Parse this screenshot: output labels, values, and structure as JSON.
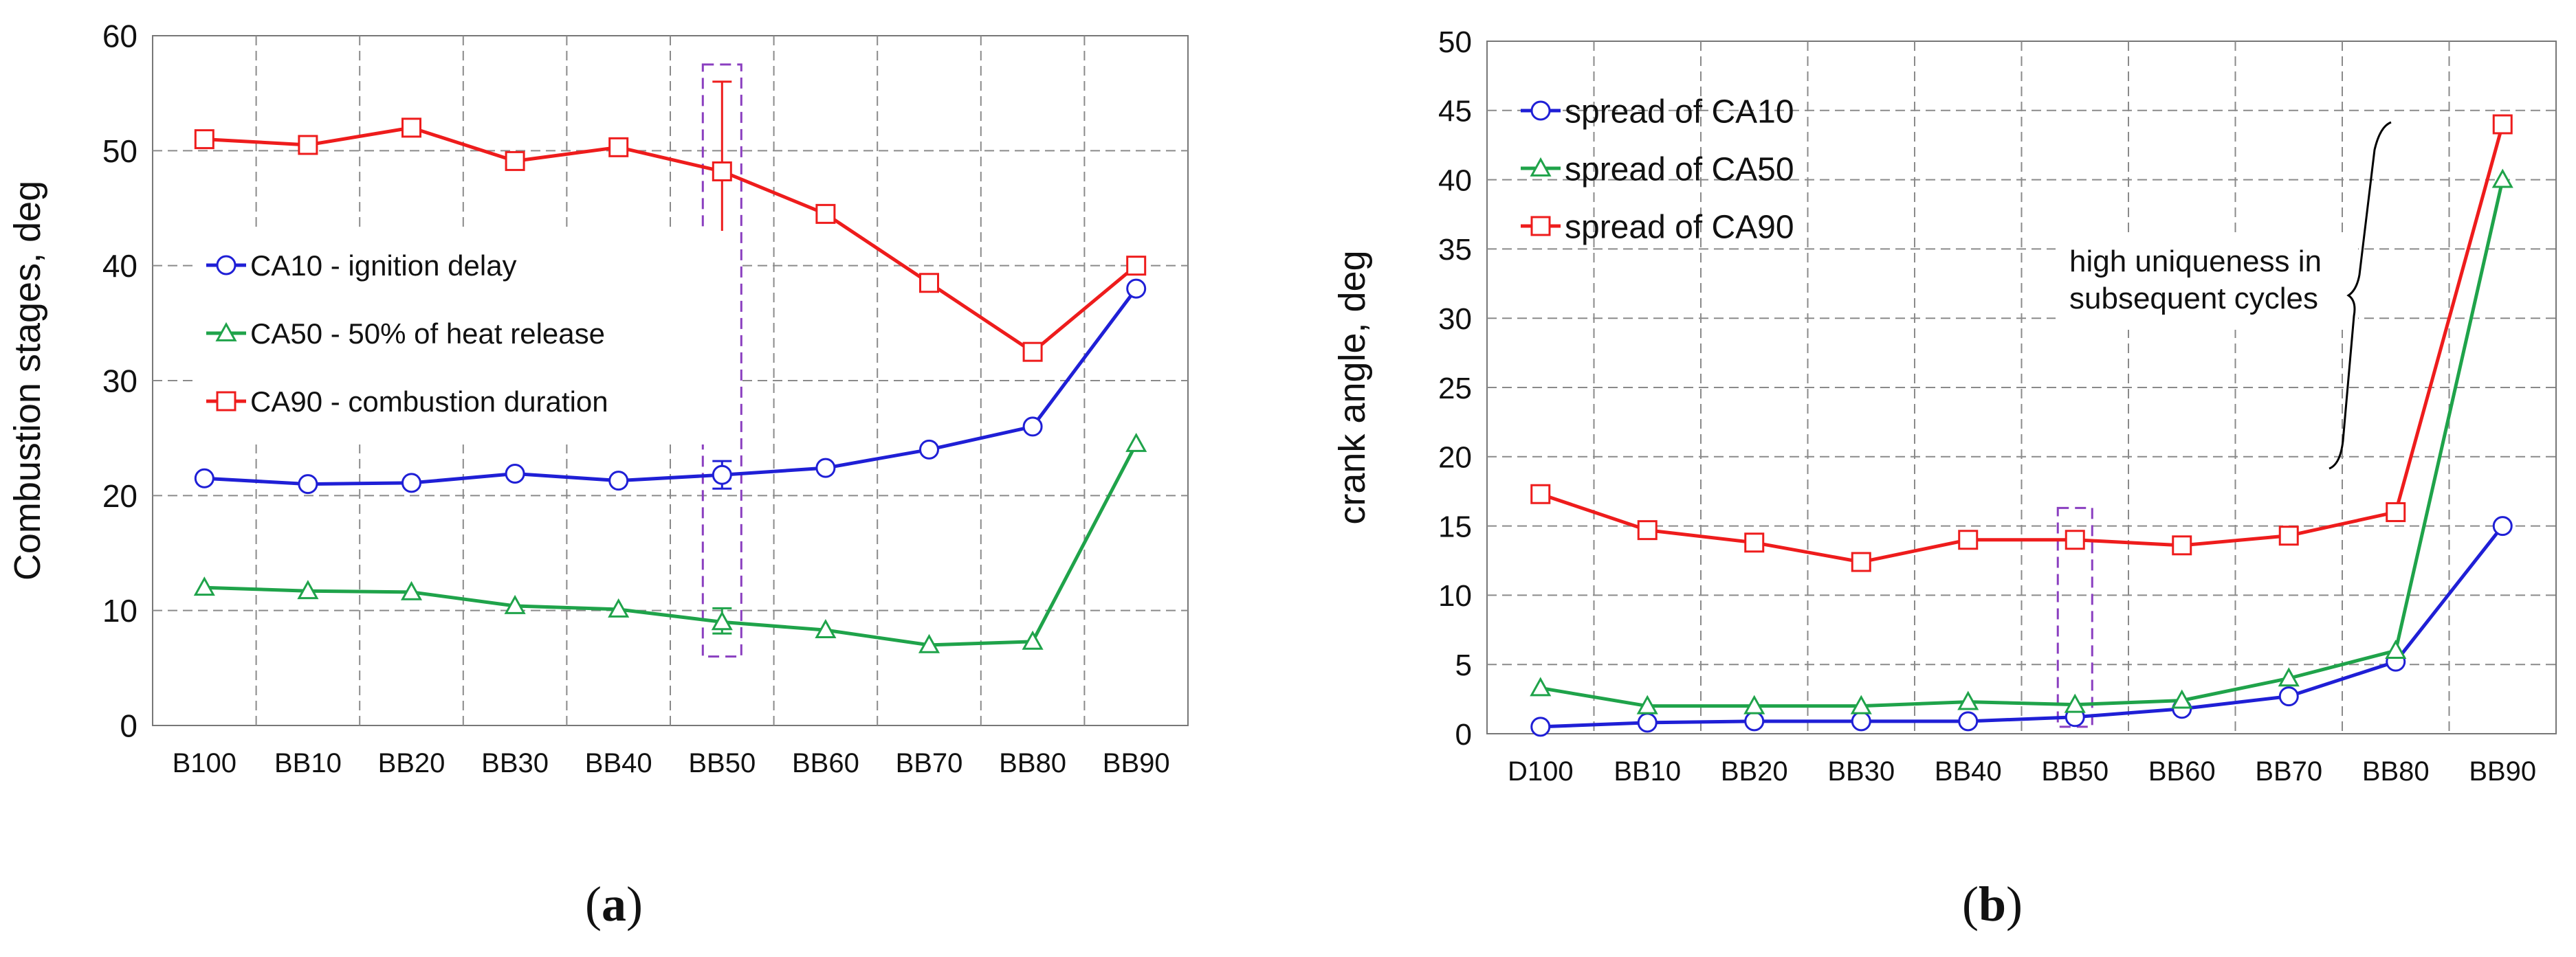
{
  "chart_data": [
    {
      "type": "line",
      "categories": [
        "B100",
        "BB10",
        "BB20",
        "BB30",
        "BB40",
        "BB50",
        "BB60",
        "BB70",
        "BB80",
        "BB90"
      ],
      "ylabel": "Combustion stages, deg",
      "ylim": [
        0,
        60
      ],
      "yticks": [
        "0",
        "10",
        "20",
        "30",
        "40",
        "50",
        "60"
      ],
      "grid": true,
      "legend_position": "center-left",
      "series": [
        {
          "name": "CA10 - ignition delay",
          "color": "#1f1fd6",
          "marker": "circle",
          "values": [
            21.5,
            21.0,
            21.1,
            21.9,
            21.3,
            21.8,
            22.4,
            24.0,
            26.0,
            38.0
          ]
        },
        {
          "name": "CA50 - 50% of heat release",
          "color": "#1fa34a",
          "marker": "triangle",
          "values": [
            12.0,
            11.7,
            11.6,
            10.4,
            10.1,
            9.0,
            8.3,
            7.0,
            7.3,
            24.5
          ]
        },
        {
          "name": "CA90 - combustion duration",
          "color": "#ee1c1c",
          "marker": "square",
          "values": [
            51.0,
            50.5,
            52.0,
            49.1,
            50.3,
            48.2,
            44.5,
            38.5,
            32.5,
            40.0
          ]
        }
      ],
      "error_bars": [
        {
          "series": "CA10 - ignition delay",
          "category": "BB50",
          "low": 20.6,
          "high": 23.0
        },
        {
          "series": "CA50 - 50% of heat release",
          "category": "BB50",
          "low": 8.0,
          "high": 10.2
        },
        {
          "series": "CA90 - combustion duration",
          "category": "BB50",
          "low": 41.5,
          "high": 56.0
        }
      ],
      "highlight_box": {
        "category": "BB50",
        "ymin": 6.0,
        "ymax": 57.5
      },
      "caption": "a"
    },
    {
      "type": "line",
      "categories": [
        "D100",
        "BB10",
        "BB20",
        "BB30",
        "BB40",
        "BB50",
        "BB60",
        "BB70",
        "BB80",
        "BB90"
      ],
      "ylabel": "crank angle, deg",
      "ylim": [
        0,
        50
      ],
      "yticks": [
        "0",
        "5",
        "10",
        "15",
        "20",
        "25",
        "30",
        "35",
        "40",
        "45",
        "50"
      ],
      "grid": true,
      "legend_position": "top-left",
      "series": [
        {
          "name": "spread of CA10",
          "color": "#1f1fd6",
          "marker": "circle",
          "values": [
            0.5,
            0.8,
            0.9,
            0.9,
            0.9,
            1.2,
            1.8,
            2.7,
            5.2,
            15.0
          ]
        },
        {
          "name": "spread of CA50",
          "color": "#1fa34a",
          "marker": "triangle",
          "values": [
            3.3,
            2.0,
            2.0,
            2.0,
            2.3,
            2.1,
            2.4,
            4.0,
            6.0,
            40.0
          ]
        },
        {
          "name": "spread of CA90",
          "color": "#ee1c1c",
          "marker": "square",
          "values": [
            17.3,
            14.7,
            13.8,
            12.4,
            14.0,
            14.0,
            13.6,
            14.3,
            16.0,
            44.0
          ]
        }
      ],
      "annotation": "high uniqueness in subsequent cycles",
      "highlight_box": {
        "category": "BB50",
        "ymin": 0.5,
        "ymax": 16.3
      },
      "caption": "b"
    }
  ],
  "caption_open": "(",
  "caption_close": ")"
}
